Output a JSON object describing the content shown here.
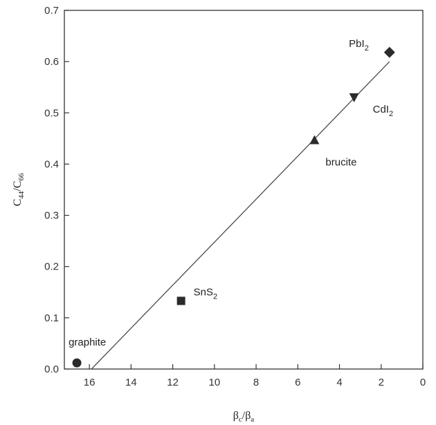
{
  "chart_data": {
    "type": "scatter",
    "title": "",
    "xlabel_html": {
      "base1": "β",
      "sub1": "c",
      "slash": "/",
      "base2": "β",
      "sub2": "a"
    },
    "ylabel_html": {
      "base1": "C",
      "sub1": "44",
      "slash": "/",
      "base2": "C",
      "sub2": "66"
    },
    "xlim": [
      17.2,
      0
    ],
    "ylim": [
      0,
      0.7
    ],
    "x_ticks": [
      "16",
      "14",
      "12",
      "10",
      "8",
      "6",
      "4",
      "2",
      "0"
    ],
    "y_ticks": [
      "0.0",
      "0.1",
      "0.2",
      "0.3",
      "0.4",
      "0.5",
      "0.6",
      "0.7"
    ],
    "points": [
      {
        "label": "graphite",
        "label_sub": "",
        "label_tail": "",
        "x": 16.6,
        "y": 0.012,
        "marker": "circle"
      },
      {
        "label": "SnS",
        "label_sub": "2",
        "label_tail": "",
        "x": 11.6,
        "y": 0.133,
        "marker": "square"
      },
      {
        "label": "brucite",
        "label_sub": "",
        "label_tail": "",
        "x": 5.2,
        "y": 0.447,
        "marker": "triangle-up"
      },
      {
        "label": "CdI",
        "label_sub": "2",
        "label_tail": "",
        "x": 3.3,
        "y": 0.53,
        "marker": "triangle-down"
      },
      {
        "label": "PbI",
        "label_sub": "2",
        "label_tail": "",
        "x": 1.6,
        "y": 0.618,
        "marker": "diamond"
      }
    ],
    "fit_line": {
      "x": [
        15.9,
        1.6
      ],
      "y": [
        0.0,
        0.6
      ]
    },
    "grid": false,
    "colors": {
      "marker": "#2b2b2b",
      "line": "#4a4a4a",
      "axis": "#333333"
    }
  }
}
